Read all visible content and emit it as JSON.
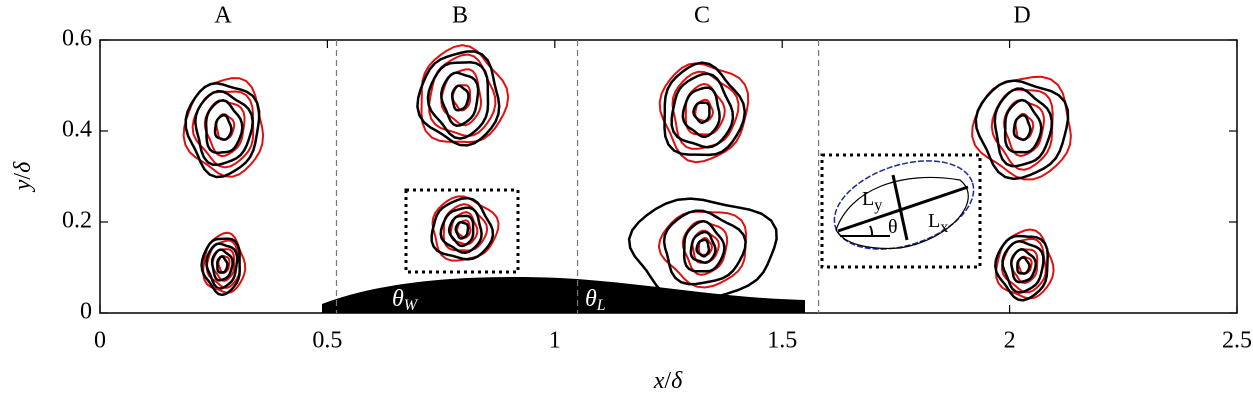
{
  "chart_data": {
    "type": "contour",
    "xlabel": {
      "text": "x",
      "sep": "/",
      "unit": "δ"
    },
    "ylabel": {
      "text": "y",
      "sep": "/",
      "unit": "δ"
    },
    "xlim": [
      0,
      2.5
    ],
    "ylim": [
      0,
      0.6
    ],
    "xticks": [
      0,
      0.5,
      1,
      1.5,
      2,
      2.5
    ],
    "yticks": [
      0,
      0.2,
      0.4,
      0.6
    ],
    "regions": [
      "A",
      "B",
      "C",
      "D"
    ],
    "dividers": [
      0.52,
      1.05,
      1.58
    ],
    "annotations": [
      {
        "text": "θ",
        "sub": "W"
      },
      {
        "text": "θ",
        "sub": "L"
      },
      {
        "text": "θ"
      },
      {
        "text": "L",
        "sub": "x"
      },
      {
        "text": "L",
        "sub": "y"
      }
    ]
  }
}
